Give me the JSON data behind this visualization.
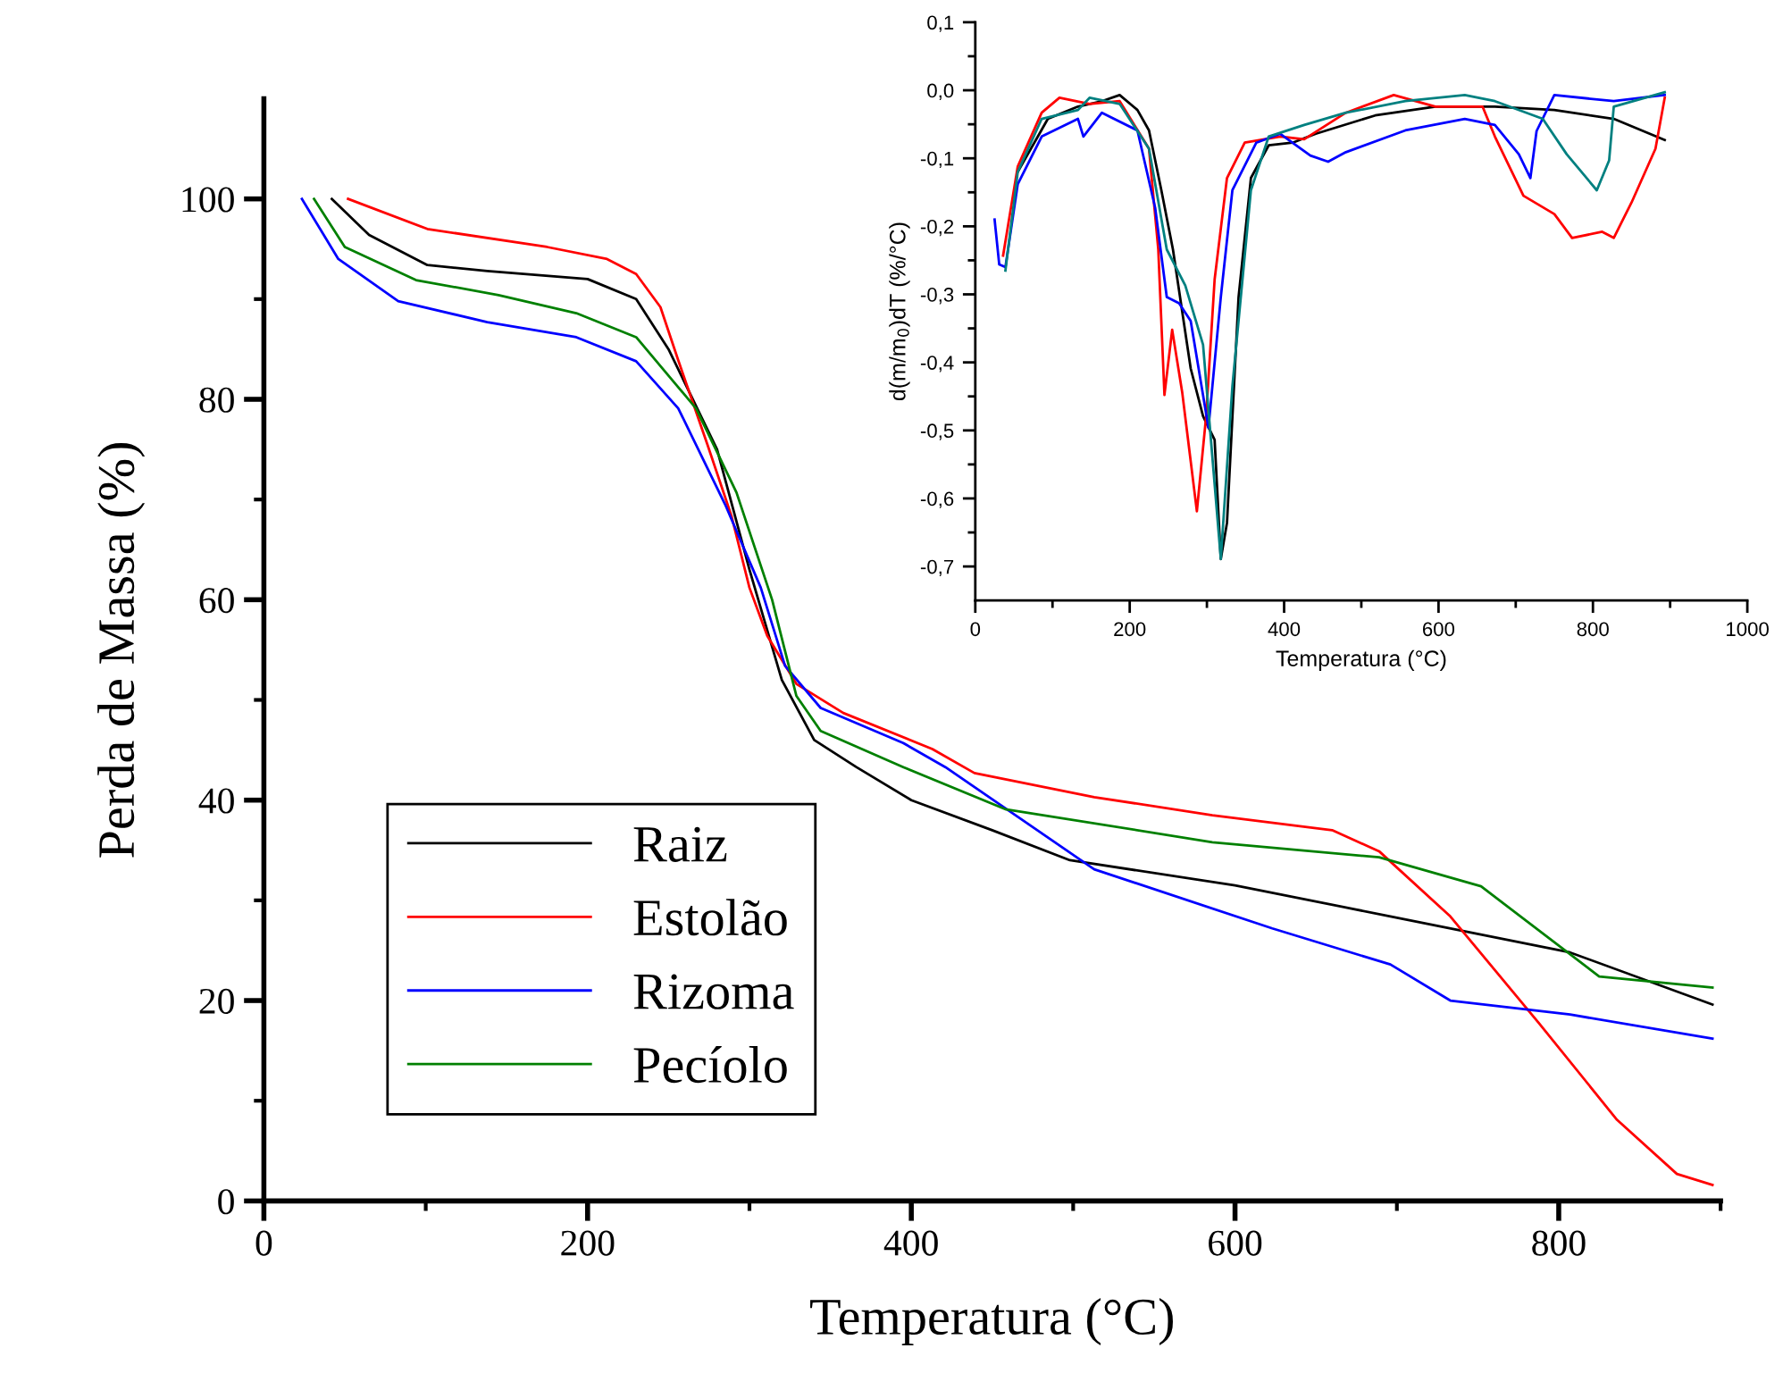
{
  "chart_data": [
    {
      "type": "line",
      "xlabel": "Temperatura (°C)",
      "ylabel": "Perda de Massa (%)",
      "xlim": [
        0,
        900
      ],
      "ylim": [
        0,
        110
      ],
      "xticks": [
        0,
        {
          "value": 100,
          "label": null
        },
        200,
        {
          "value": 300,
          "label": null
        },
        400,
        {
          "value": 500,
          "label": null
        },
        600,
        {
          "value": 700,
          "label": null
        },
        800,
        {
          "value": 900,
          "label": null
        }
      ],
      "yticks": [
        0,
        {
          "value": 10,
          "label": null
        },
        20,
        {
          "value": 30,
          "label": null
        },
        40,
        {
          "value": 50,
          "label": null
        },
        60,
        {
          "value": 70,
          "label": null
        },
        80,
        {
          "value": 90,
          "label": null
        },
        100
      ],
      "grid": false,
      "legend": "bottom left",
      "marker": "none",
      "line_style": "solid",
      "series": [
        {
          "name": "Raiz",
          "color": "#000000",
          "x": [
            42,
            65,
            101,
            138,
            200,
            230,
            250,
            280,
            300,
            320,
            340,
            366,
            400,
            450,
            498,
            600,
            696,
            807,
            895
          ],
          "values": [
            100,
            96.4,
            93.4,
            92.8,
            92,
            90,
            85,
            75,
            63,
            52,
            46,
            43.3,
            40,
            37,
            34,
            31.5,
            28.4,
            24.8,
            19.6
          ]
        },
        {
          "name": "Estolão",
          "color": "#ff0000",
          "x": [
            52,
            101,
            175,
            212,
            230,
            245,
            256,
            274,
            289,
            300,
            311,
            329,
            358,
            413,
            439,
            513,
            586,
            660,
            689,
            733,
            788,
            836,
            873,
            895
          ],
          "values": [
            100,
            97,
            95.2,
            94,
            92.5,
            89.2,
            83.9,
            75.5,
            68.3,
            61.2,
            56.4,
            51.6,
            48.7,
            45.1,
            42.7,
            40.3,
            38.5,
            37,
            34.9,
            28.4,
            17.7,
            8.1,
            2.7,
            1.6
          ]
        },
        {
          "name": "Rizoma",
          "color": "#0000ff",
          "x": [
            23.5,
            46,
            83,
            138,
            193,
            230,
            256,
            285,
            307,
            322,
            344,
            395,
            421,
            513,
            623,
            696,
            733,
            807,
            895
          ],
          "values": [
            100,
            94,
            89.8,
            87.7,
            86.2,
            83.8,
            79.1,
            69.5,
            61.2,
            53.4,
            49.2,
            45.7,
            43.3,
            33.1,
            27.2,
            23.6,
            20,
            18.6,
            16.2
          ]
        },
        {
          "name": "Pecíolo",
          "color": "#008000",
          "x": [
            31,
            50,
            94,
            145,
            193,
            230,
            267,
            292,
            314,
            329,
            344,
            395,
            458,
            586,
            689,
            752,
            825,
            895
          ],
          "values": [
            100,
            95.2,
            91.9,
            90.4,
            88.6,
            86.2,
            79.1,
            70.7,
            60,
            50.4,
            46.9,
            43.3,
            39.1,
            35.8,
            34.3,
            31.4,
            22.4,
            21.3
          ]
        }
      ]
    },
    {
      "type": "line",
      "xlabel": "Temperatura (°C)",
      "ylabel": "d(m/m$_{0}$)dT (%/°C)",
      "xlim": [
        0,
        1000
      ],
      "ylim": [
        -0.75,
        0.1
      ],
      "xticks": [
        0,
        {
          "value": 100,
          "label": null
        },
        200,
        {
          "value": 300,
          "label": null
        },
        400,
        {
          "value": 500,
          "label": null
        },
        600,
        {
          "value": 700,
          "label": null
        },
        800,
        {
          "value": 900,
          "label": null
        },
        1000
      ],
      "yticks": [
        {
          "value": -0.7,
          "label": "-0,7"
        },
        {
          "value": -0.65,
          "label": null
        },
        {
          "value": -0.6,
          "label": "-0,6"
        },
        {
          "value": -0.55,
          "label": null
        },
        {
          "value": -0.5,
          "label": "-0,5"
        },
        {
          "value": -0.45,
          "label": null
        },
        {
          "value": -0.4,
          "label": "-0,4"
        },
        {
          "value": -0.35,
          "label": null
        },
        {
          "value": -0.3,
          "label": "-0,3"
        },
        {
          "value": -0.25,
          "label": null
        },
        {
          "value": -0.2,
          "label": "-0,2"
        },
        {
          "value": -0.15,
          "label": null
        },
        {
          "value": -0.1,
          "label": "-0,1"
        },
        {
          "value": -0.05,
          "label": null
        },
        {
          "value": 0,
          "label": "0,0"
        },
        {
          "value": 0.05,
          "label": null
        },
        {
          "value": 0.1,
          "label": "0,1"
        }
      ],
      "grid": false,
      "legend": false,
      "marker": "none",
      "line_style": "solid",
      "series": [
        {
          "color": "#000000",
          "x": [
            55,
            94,
            133,
            164,
            187,
            210,
            225,
            241,
            256,
            279,
            295,
            310,
            318,
            326,
            341,
            357,
            380,
            411,
            441,
            518,
            596,
            673,
            750,
            827,
            893
          ],
          "values": [
            -0.12,
            -0.042,
            -0.024,
            -0.016,
            -0.007,
            -0.029,
            -0.059,
            -0.147,
            -0.234,
            -0.409,
            -0.479,
            -0.514,
            -0.689,
            -0.636,
            -0.304,
            -0.129,
            -0.081,
            -0.077,
            -0.064,
            -0.037,
            -0.024,
            -0.024,
            -0.029,
            -0.042,
            -0.073
          ]
        },
        {
          "color": "#ff0000",
          "x": [
            36,
            55,
            86,
            109,
            148,
            187,
            225,
            237,
            245,
            255,
            268,
            287,
            299,
            310,
            326,
            349,
            395,
            426,
            480,
            542,
            596,
            657,
            673,
            710,
            750,
            773,
            812,
            827,
            850,
            881,
            893
          ],
          "values": [
            -0.243,
            -0.112,
            -0.033,
            -0.011,
            -0.02,
            -0.016,
            -0.086,
            -0.234,
            -0.448,
            -0.352,
            -0.444,
            -0.619,
            -0.479,
            -0.278,
            -0.129,
            -0.077,
            -0.068,
            -0.072,
            -0.033,
            -0.007,
            -0.024,
            -0.024,
            -0.068,
            -0.155,
            -0.182,
            -0.217,
            -0.208,
            -0.217,
            -0.165,
            -0.086,
            -0.011
          ]
        },
        {
          "color": "#0000ff",
          "x": [
            25,
            31,
            39,
            55,
            86,
            133,
            140,
            164,
            210,
            233,
            248,
            264,
            279,
            302,
            318,
            333,
            364,
            395,
            434,
            457,
            480,
            557,
            634,
            673,
            704,
            719,
            727,
            750,
            827,
            893
          ],
          "values": [
            -0.19,
            -0.256,
            -0.26,
            -0.138,
            -0.068,
            -0.042,
            -0.068,
            -0.033,
            -0.059,
            -0.173,
            -0.304,
            -0.313,
            -0.339,
            -0.496,
            -0.304,
            -0.147,
            -0.077,
            -0.064,
            -0.096,
            -0.105,
            -0.091,
            -0.059,
            -0.042,
            -0.051,
            -0.094,
            -0.129,
            -0.06,
            -0.007,
            -0.016,
            -0.007
          ]
        },
        {
          "color": "#008080",
          "x": [
            39,
            55,
            86,
            133,
            148,
            187,
            225,
            248,
            272,
            295,
            318,
            333,
            357,
            380,
            426,
            480,
            557,
            634,
            673,
            735,
            766,
            805,
            821,
            827,
            893
          ],
          "values": [
            -0.265,
            -0.12,
            -0.042,
            -0.029,
            -0.011,
            -0.02,
            -0.086,
            -0.234,
            -0.287,
            -0.374,
            -0.689,
            -0.435,
            -0.147,
            -0.068,
            -0.051,
            -0.033,
            -0.016,
            -0.007,
            -0.016,
            -0.042,
            -0.094,
            -0.147,
            -0.103,
            -0.024,
            -0.003
          ]
        }
      ]
    }
  ]
}
